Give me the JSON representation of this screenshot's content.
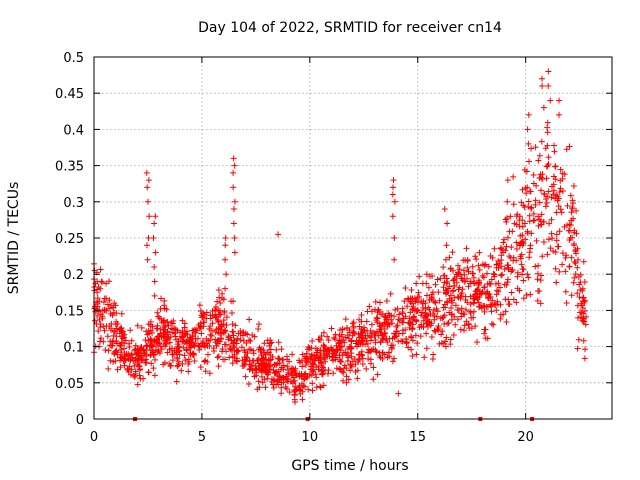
{
  "chart_data": {
    "type": "scatter",
    "title": "Day 104 of 2022, SRMTID for receiver cn14",
    "xlabel": "GPS time / hours",
    "ylabel": "SRMTID / TECUs",
    "xlim": [
      0,
      24
    ],
    "ylim": [
      0,
      0.5
    ],
    "xticks": [
      0,
      5,
      10,
      15,
      20
    ],
    "xtick_labels": [
      "0",
      "5",
      "10",
      "15",
      "20"
    ],
    "yticks": [
      0,
      0.05,
      0.1,
      0.15,
      0.2,
      0.25,
      0.3,
      0.35,
      0.4,
      0.45,
      0.5
    ],
    "ytick_labels": [
      "0",
      "0.05",
      "0.1",
      "0.15",
      "0.2",
      "0.25",
      "0.3",
      "0.35",
      "0.4",
      "0.45",
      "0.5"
    ],
    "grid": true,
    "marker": "+",
    "color": "#ff0000",
    "series": [
      {
        "name": "SRMTID",
        "trend": {
          "x": [
            0,
            0.3,
            0.8,
            1.3,
            1.8,
            2.3,
            3,
            4,
            5,
            6,
            7,
            8,
            9,
            9.5,
            10,
            11,
            12,
            13,
            14,
            15,
            16,
            17,
            18,
            19,
            20,
            21,
            22,
            22.8
          ],
          "y": [
            0.16,
            0.15,
            0.13,
            0.1,
            0.08,
            0.09,
            0.12,
            0.1,
            0.11,
            0.13,
            0.09,
            0.075,
            0.06,
            0.05,
            0.075,
            0.085,
            0.1,
            0.12,
            0.12,
            0.14,
            0.15,
            0.17,
            0.17,
            0.21,
            0.25,
            0.3,
            0.27,
            0.13
          ]
        },
        "spikes": [
          {
            "x": 2.5,
            "y": [
              0.22,
              0.24,
              0.25,
              0.28,
              0.3,
              0.32,
              0.33,
              0.34
            ]
          },
          {
            "x": 2.8,
            "y": [
              0.17,
              0.19,
              0.21,
              0.23,
              0.25,
              0.27,
              0.28
            ]
          },
          {
            "x": 6.1,
            "y": [
              0.18,
              0.2,
              0.22,
              0.24,
              0.25
            ]
          },
          {
            "x": 6.5,
            "y": [
              0.23,
              0.25,
              0.27,
              0.29,
              0.3,
              0.32,
              0.34,
              0.35,
              0.36
            ]
          },
          {
            "x": 8.5,
            "y": [
              0.255
            ]
          },
          {
            "x": 13.9,
            "y": [
              0.22,
              0.25,
              0.28,
              0.3,
              0.31,
              0.32,
              0.33
            ]
          },
          {
            "x": 16.3,
            "y": [
              0.22,
              0.24,
              0.27,
              0.29
            ]
          },
          {
            "x": 19.2,
            "y": [
              0.3,
              0.33
            ]
          },
          {
            "x": 20.1,
            "y": [
              0.38,
              0.4,
              0.42
            ]
          },
          {
            "x": 20.8,
            "y": [
              0.43,
              0.46,
              0.47
            ]
          },
          {
            "x": 21.1,
            "y": [
              0.44,
              0.46,
              0.48
            ]
          },
          {
            "x": 21.6,
            "y": [
              0.42,
              0.44
            ]
          },
          {
            "x": 14.1,
            "y": [
              0.035
            ]
          }
        ],
        "point_count": 1900
      }
    ],
    "gap_markers_x": [
      1.9,
      9.9,
      17.9,
      20.3
    ]
  }
}
